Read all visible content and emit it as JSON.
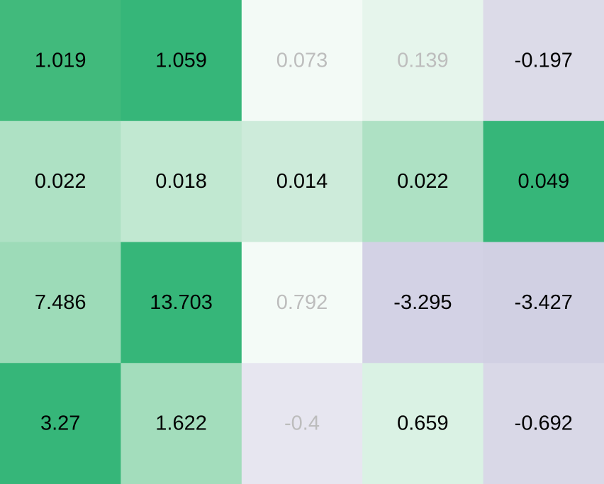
{
  "chart_data": {
    "type": "heatmap",
    "rows": 4,
    "columns": 5,
    "cells": [
      [
        {
          "label": "1.019",
          "value": 1.019,
          "fill": "#41BA7C",
          "text_color": "#000000"
        },
        {
          "label": "1.059",
          "value": 1.059,
          "fill": "#36B679",
          "text_color": "#000000"
        },
        {
          "label": "0.073",
          "value": 0.073,
          "fill": "#F3FAF6",
          "text_color": "#BDBDBD"
        },
        {
          "label": "0.139",
          "value": 0.139,
          "fill": "#E6F5EC",
          "text_color": "#BDBDBD"
        },
        {
          "label": "-0.197",
          "value": -0.197,
          "fill": "#DCDBE8",
          "text_color": "#000000"
        }
      ],
      [
        {
          "label": "0.022",
          "value": 0.022,
          "fill": "#AEE1C4",
          "text_color": "#000000"
        },
        {
          "label": "0.018",
          "value": 0.018,
          "fill": "#C1E8D1",
          "text_color": "#000000"
        },
        {
          "label": "0.014",
          "value": 0.014,
          "fill": "#CDEBDA",
          "text_color": "#000000"
        },
        {
          "label": "0.022",
          "value": 0.022,
          "fill": "#AEE1C4",
          "text_color": "#000000"
        },
        {
          "label": "0.049",
          "value": 0.049,
          "fill": "#36B679",
          "text_color": "#000000"
        }
      ],
      [
        {
          "label": "7.486",
          "value": 7.486,
          "fill": "#9DDBB8",
          "text_color": "#000000"
        },
        {
          "label": "13.703",
          "value": 13.703,
          "fill": "#36B679",
          "text_color": "#000000"
        },
        {
          "label": "0.792",
          "value": 0.792,
          "fill": "#F4FBF7",
          "text_color": "#BDBDBD"
        },
        {
          "label": "-3.295",
          "value": -3.295,
          "fill": "#D3D2E5",
          "text_color": "#000000"
        },
        {
          "label": "-3.427",
          "value": -3.427,
          "fill": "#D1D0E3",
          "text_color": "#000000"
        }
      ],
      [
        {
          "label": "3.27",
          "value": 3.27,
          "fill": "#36B679",
          "text_color": "#000000"
        },
        {
          "label": "1.622",
          "value": 1.622,
          "fill": "#A3DDBC",
          "text_color": "#000000"
        },
        {
          "label": "-0.4",
          "value": -0.4,
          "fill": "#E7E6F0",
          "text_color": "#BDBDBD"
        },
        {
          "label": "0.659",
          "value": 0.659,
          "fill": "#DAF2E4",
          "text_color": "#000000"
        },
        {
          "label": "-0.692",
          "value": -0.692,
          "fill": "#D9D8E7",
          "text_color": "#000000"
        }
      ]
    ],
    "title": "",
    "xlabel": "",
    "ylabel": "",
    "grid": false,
    "legend": "none"
  }
}
